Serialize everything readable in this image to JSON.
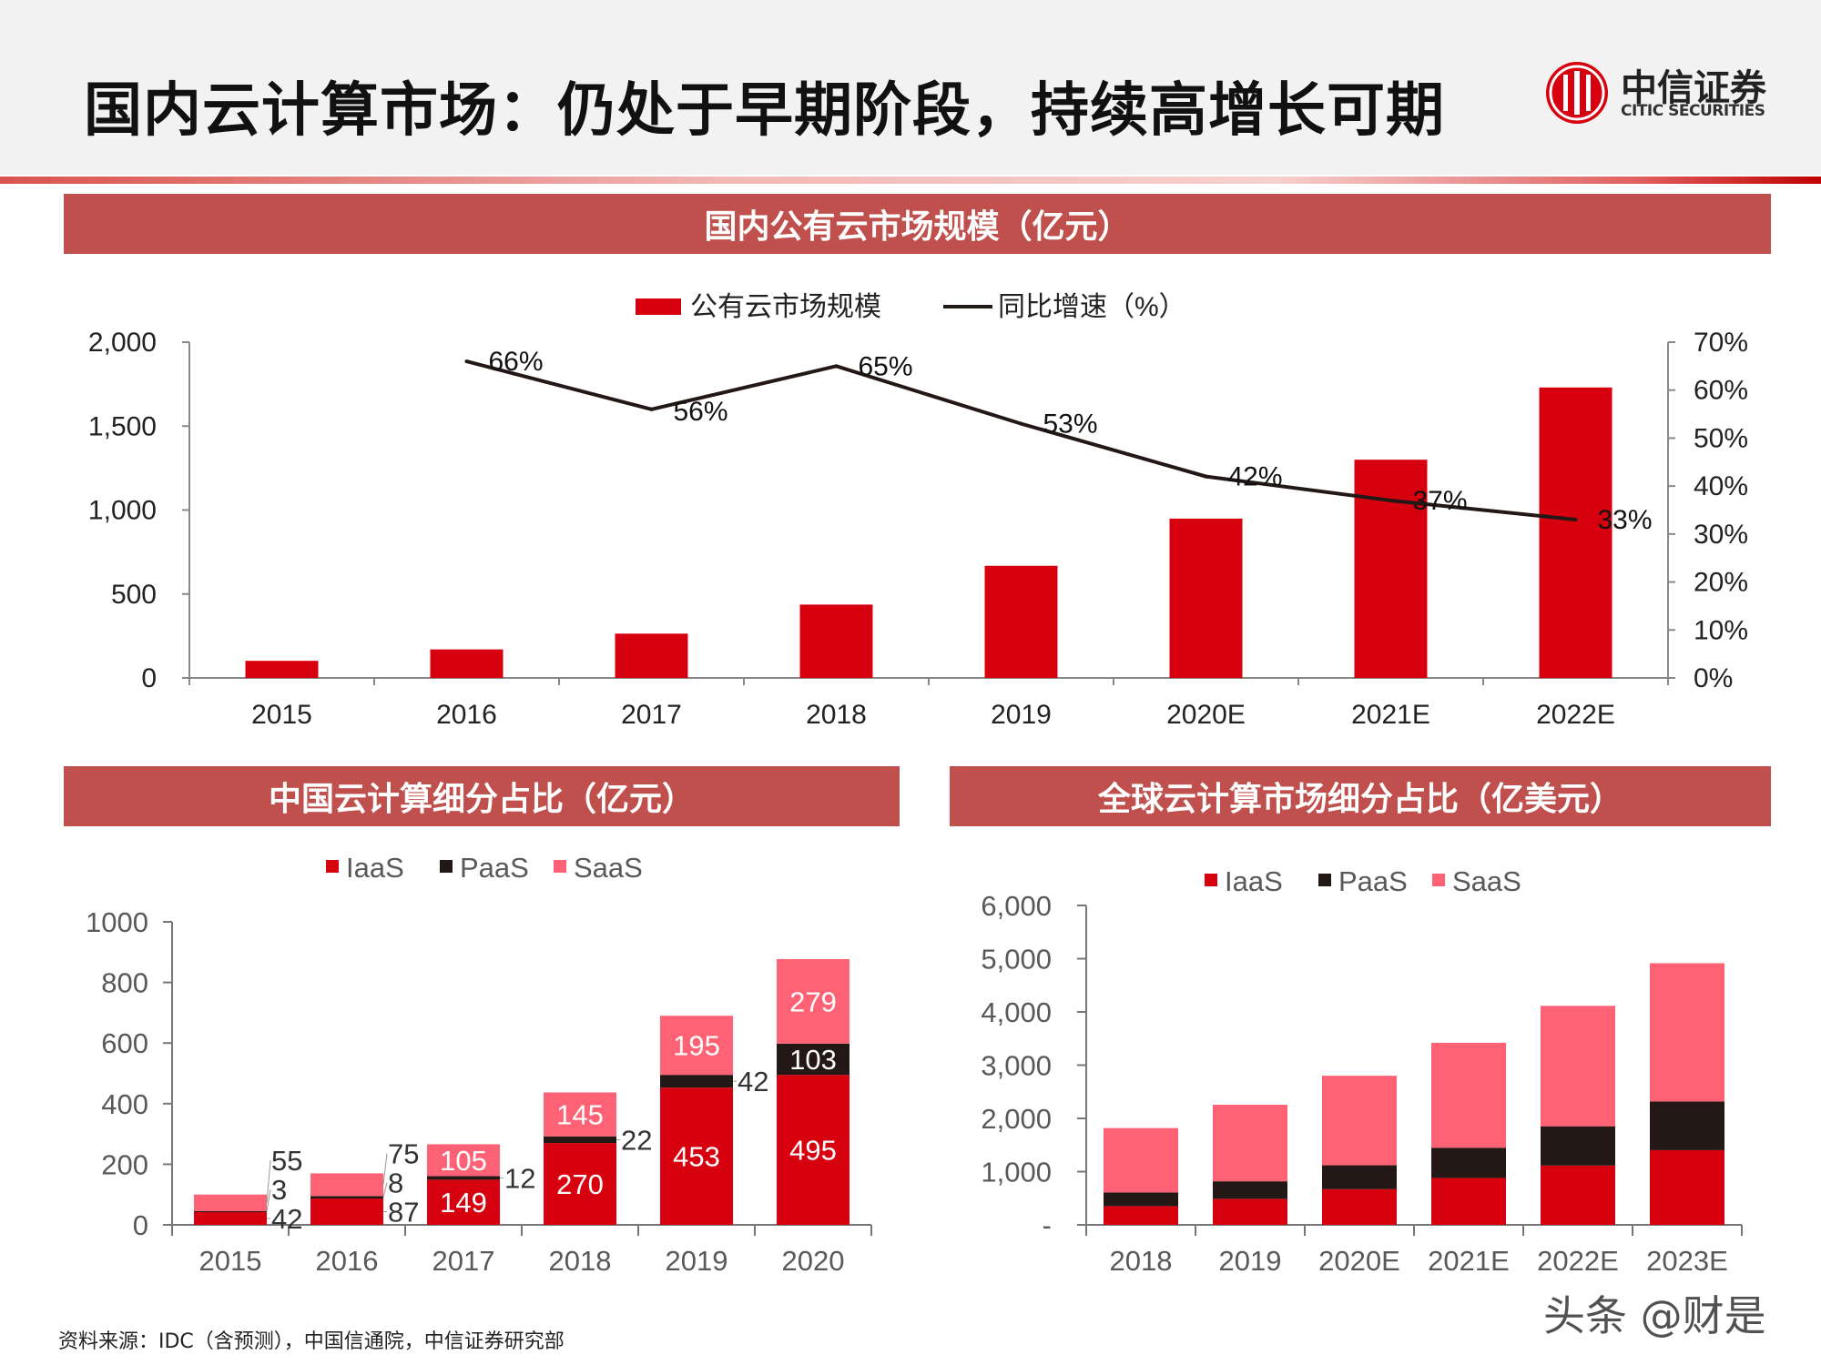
{
  "header": {
    "title": "国内云计算市场：仍处于早期阶段，持续高增长可期",
    "logo": {
      "cn": "中信证券",
      "en": "CITIC SECURITIES"
    }
  },
  "sections": {
    "top": "国内公有云市场规模（亿元）",
    "bottom_left": "中国云计算细分占比（亿元）",
    "bottom_right": "全球云计算市场细分占比（亿美元）"
  },
  "colors": {
    "bar_red": "#d7000f",
    "paas": "#231815",
    "saas": "#ff6274",
    "section": "#c0504d",
    "line": "#231815"
  },
  "chart_data": [
    {
      "type": "bar+line",
      "categories": [
        "2015",
        "2016",
        "2017",
        "2018",
        "2019",
        "2020E",
        "2021E",
        "2022E"
      ],
      "series": [
        {
          "name": "公有云市场规模",
          "type": "bar",
          "axis": "left",
          "values": [
            102,
            170,
            264,
            437,
            668,
            949,
            1300,
            1730
          ]
        },
        {
          "name": "同比增速（%）",
          "type": "line",
          "axis": "right",
          "values": [
            null,
            66,
            56,
            65,
            53,
            42,
            37,
            33
          ],
          "labels": [
            "",
            "66%",
            "56%",
            "65%",
            "53%",
            "42%",
            "37%",
            "33%"
          ]
        }
      ],
      "ylim_left": [
        0,
        2000
      ],
      "yticks_left": [
        "0",
        "500",
        "1,000",
        "1,500",
        "2,000"
      ],
      "ylim_right": [
        0,
        70
      ],
      "yticks_right": [
        "0%",
        "10%",
        "20%",
        "30%",
        "40%",
        "50%",
        "60%",
        "70%"
      ],
      "legend": "top",
      "grid": false
    },
    {
      "type": "stacked_bar",
      "categories": [
        "2015",
        "2016",
        "2017",
        "2018",
        "2019",
        "2020"
      ],
      "series": [
        {
          "name": "IaaS",
          "values": [
            42,
            87,
            149,
            270,
            453,
            495
          ],
          "labels": [
            "42",
            "87",
            "149",
            "270",
            "453",
            "495"
          ]
        },
        {
          "name": "PaaS",
          "values": [
            3,
            8,
            12,
            22,
            42,
            103
          ],
          "labels": [
            "3",
            "8",
            "12",
            "22",
            "42",
            "103"
          ]
        },
        {
          "name": "SaaS",
          "values": [
            55,
            75,
            105,
            145,
            195,
            279
          ],
          "labels": [
            "55",
            "75",
            "105",
            "145",
            "195",
            "279"
          ]
        }
      ],
      "ylim": [
        0,
        1000
      ],
      "yticks": [
        "0",
        "200",
        "400",
        "600",
        "800",
        "1000"
      ],
      "legend": "top",
      "grid": false
    },
    {
      "type": "stacked_bar",
      "categories": [
        "2018",
        "2019",
        "2020E",
        "2021E",
        "2022E",
        "2023E"
      ],
      "series": [
        {
          "name": "IaaS",
          "values": [
            352,
            489,
            670,
            881,
            1114,
            1403
          ]
        },
        {
          "name": "PaaS",
          "values": [
            256,
            329,
            449,
            568,
            738,
            915
          ]
        },
        {
          "name": "SaaS",
          "values": [
            1210,
            1438,
            1682,
            1971,
            2262,
            2597
          ]
        }
      ],
      "ylim": [
        0,
        6000
      ],
      "yticks": [
        "-",
        "1,000",
        "2,000",
        "3,000",
        "4,000",
        "5,000",
        "6,000"
      ],
      "legend": "top",
      "grid": false
    }
  ],
  "footer": {
    "source": "资料来源：IDC（含预测），中国信通院，中信证券研究部",
    "watermark": "头条 @财是"
  }
}
